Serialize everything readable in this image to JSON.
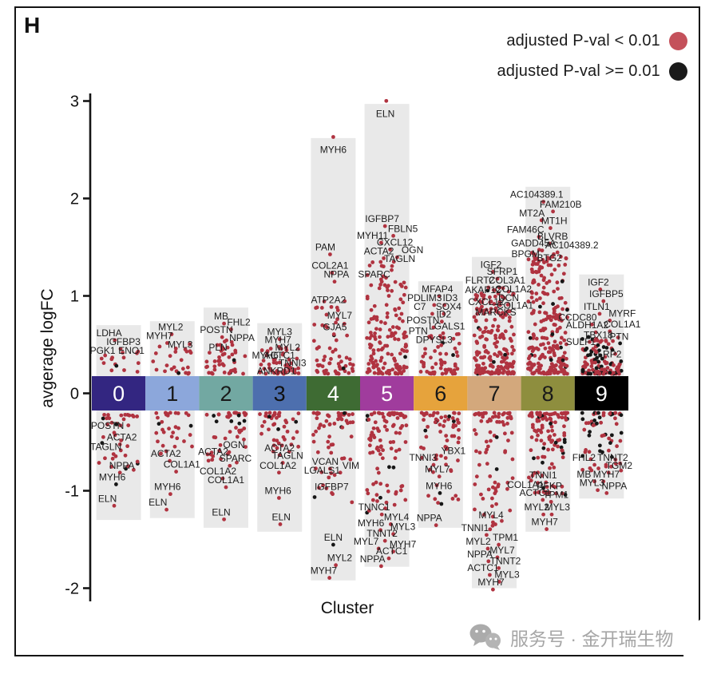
{
  "panel": {
    "label": "H"
  },
  "legend": {
    "items": [
      {
        "label": "adjusted P-val < 0.01",
        "color": "#c4515b"
      },
      {
        "label": "adjusted  P-val >= 0.01",
        "color": "#1a1a1a"
      }
    ]
  },
  "axes": {
    "y_label": "avgerage logFC",
    "x_label": "Cluster",
    "y_ticks": [
      3,
      2,
      1,
      0,
      -1,
      -2
    ]
  },
  "watermark": {
    "icon": "wechat-icon",
    "text": "服务号 · 金开瑞生物"
  },
  "chart_data": {
    "type": "scatter",
    "title": "",
    "xlabel": "Cluster",
    "ylabel": "avgerage logFC",
    "ylim": [
      -2,
      3
    ],
    "grid": false,
    "legend_position": "top-right",
    "dot_colors": {
      "significant": "#b03340",
      "not_significant": "#161616"
    },
    "strip_color": "#e9e9e9",
    "clusters": [
      {
        "id": "0",
        "band_color": "#332681",
        "band_text_color": "#ffffff",
        "upper": {
          "extent": 0.7,
          "dots": {
            "count": 13,
            "min": 0.22,
            "max": 0.46,
            "pow": 1.6,
            "black": 0.06
          },
          "labels": [
            [
              "LDHA",
              -12,
              0.62
            ],
            [
              "IGFBP3",
              6,
              0.53
            ],
            [
              "PGK1",
              -20,
              0.44
            ],
            [
              "ENO1",
              16,
              0.44
            ]
          ]
        },
        "lower": {
          "extent": -1.3,
          "dots": {
            "count": 36,
            "min": 0.22,
            "max": 0.8,
            "pow": 2.2,
            "black": 0.12
          },
          "labels": [
            [
              "POSTN",
              -14,
              -0.33
            ],
            [
              "ACTA2",
              4,
              -0.45
            ],
            [
              "TAGLN",
              -16,
              -0.55
            ],
            [
              "NPPA",
              4,
              -0.74
            ],
            [
              "MYH6",
              -8,
              -0.86,
              1
            ],
            [
              "ELN",
              -14,
              -1.08
            ]
          ]
        }
      },
      {
        "id": "1",
        "band_color": "#8ca7db",
        "band_text_color": "#1a1a1a",
        "upper": {
          "extent": 0.74,
          "dots": {
            "count": 24,
            "min": 0.2,
            "max": 0.52,
            "pow": 1.8,
            "black": 0.05
          },
          "labels": [
            [
              "MYL2",
              -2,
              0.68
            ],
            [
              "MYH7",
              -16,
              0.59
            ],
            [
              "MYL3",
              10,
              0.5
            ]
          ]
        },
        "lower": {
          "extent": -1.28,
          "dots": {
            "count": 32,
            "min": 0.2,
            "max": 0.65,
            "pow": 2.0,
            "black": 0.16
          },
          "labels": [
            [
              "ACTA2",
              -8,
              -0.62
            ],
            [
              "COL1A1",
              12,
              -0.73
            ],
            [
              "MYH6",
              -6,
              -0.96
            ],
            [
              "ELN",
              -18,
              -1.12
            ]
          ]
        }
      },
      {
        "id": "2",
        "band_color": "#72a8a2",
        "band_text_color": "#1a1a1a",
        "upper": {
          "extent": 0.88,
          "dots": {
            "count": 42,
            "min": 0.2,
            "max": 0.55,
            "pow": 2.0,
            "black": 0.04
          },
          "labels": [
            [
              "MB",
              -6,
              0.79
            ],
            [
              "FHL2",
              16,
              0.73
            ],
            [
              "POSTN",
              -12,
              0.65
            ],
            [
              "NPPA",
              20,
              0.57
            ],
            [
              "PLN",
              -10,
              0.47
            ]
          ]
        },
        "lower": {
          "extent": -1.38,
          "dots": {
            "count": 46,
            "min": 0.2,
            "max": 0.72,
            "pow": 2.0,
            "black": 0.08
          },
          "labels": [
            [
              "OGN",
              10,
              -0.53
            ],
            [
              "ACTA2",
              -16,
              -0.6
            ],
            [
              "SPARC",
              12,
              -0.67
            ],
            [
              "COL1A2",
              -10,
              -0.8
            ],
            [
              "COL1A1",
              0,
              -0.89
            ],
            [
              "ELN",
              -6,
              -1.22
            ]
          ]
        }
      },
      {
        "id": "3",
        "band_color": "#4d6fae",
        "band_text_color": "#101010",
        "upper": {
          "extent": 0.72,
          "dots": {
            "count": 46,
            "min": 0.2,
            "max": 0.48,
            "pow": 1.8,
            "black": 0.05
          },
          "labels": [
            [
              "MYL3",
              0,
              0.63
            ],
            [
              "MYH7",
              -2,
              0.55
            ],
            [
              "MYL2",
              10,
              0.47
            ],
            [
              "MYH6",
              -18,
              0.39
            ],
            [
              "ACTC1",
              0,
              0.39
            ],
            [
              "TNNI3",
              16,
              0.31
            ],
            [
              "ANKRD1",
              -4,
              0.23
            ]
          ]
        },
        "lower": {
          "extent": -1.42,
          "dots": {
            "count": 42,
            "min": 0.2,
            "max": 0.62,
            "pow": 2.0,
            "black": 0.1
          },
          "labels": [
            [
              "ACTA2",
              0,
              -0.56
            ],
            [
              "TAGLN",
              10,
              -0.64
            ],
            [
              "COL1A2",
              -2,
              -0.74
            ],
            [
              "MYH6",
              -2,
              -1.0
            ],
            [
              "ELN",
              2,
              -1.27
            ]
          ]
        }
      },
      {
        "id": "4",
        "band_color": "#3e6b33",
        "band_text_color": "#ffffff",
        "upper": {
          "extent": 2.62,
          "dots": {
            "count": 60,
            "min": 0.2,
            "max": 0.95,
            "pow": 2.2,
            "black": 0.02
          },
          "labels": [
            [
              "MYH6",
              0,
              2.5,
              2
            ],
            [
              "PAM",
              -10,
              1.5
            ],
            [
              "COL2A1",
              -4,
              1.31
            ],
            [
              "NPPA",
              4,
              1.22
            ],
            [
              "ATP2A2",
              -6,
              0.96
            ],
            [
              "MYL7",
              8,
              0.8
            ],
            [
              "GJA5",
              2,
              0.68
            ]
          ]
        },
        "lower": {
          "extent": -1.92,
          "dots": {
            "count": 58,
            "min": 0.2,
            "max": 1.15,
            "pow": 2.3,
            "black": 0.05
          },
          "labels": [
            [
              "VCAN",
              -10,
              -0.7
            ],
            [
              "VIM",
              22,
              -0.74
            ],
            [
              "LGALS1",
              -14,
              -0.79
            ],
            [
              "IGFBP7",
              -2,
              -0.96
            ],
            [
              "ELN",
              0,
              -1.48,
              1
            ],
            [
              "MYL2",
              8,
              -1.69
            ],
            [
              "MYH7",
              -12,
              -1.82
            ]
          ]
        }
      },
      {
        "id": "5",
        "band_color": "#a03c9d",
        "band_text_color": "#ffffff",
        "upper": {
          "extent": 2.97,
          "dots": {
            "count": 155,
            "min": 0.2,
            "max": 1.35,
            "pow": 2.0,
            "black": 0.02
          },
          "labels": [
            [
              "ELN",
              -2,
              2.87,
              2
            ],
            [
              "IGFBP7",
              -6,
              1.79
            ],
            [
              "FBLN5",
              20,
              1.69
            ],
            [
              "MYH11",
              -18,
              1.62
            ],
            [
              "CXCL12",
              10,
              1.55
            ],
            [
              "ACTA2",
              -10,
              1.46
            ],
            [
              "OGN",
              32,
              1.47
            ],
            [
              "TAGLN",
              16,
              1.38
            ],
            [
              "SPARC",
              -16,
              1.22
            ]
          ]
        },
        "lower": {
          "extent": -1.78,
          "dots": {
            "count": 95,
            "min": 0.2,
            "max": 1.25,
            "pow": 2.2,
            "black": 0.05
          },
          "labels": [
            [
              "TNNC1",
              -16,
              -1.17
            ],
            [
              "MYL4",
              12,
              -1.27
            ],
            [
              "MYH6",
              -20,
              -1.33
            ],
            [
              "MYL3",
              20,
              -1.37
            ],
            [
              "TNNT2",
              -6,
              -1.44
            ],
            [
              "MYL7",
              -26,
              -1.52
            ],
            [
              "MYH7",
              20,
              -1.55
            ],
            [
              "ACTC1",
              6,
              -1.62
            ],
            [
              "NPPA",
              -18,
              -1.7
            ]
          ]
        }
      },
      {
        "id": "6",
        "band_color": "#e6a33c",
        "band_text_color": "#1a1a1a",
        "upper": {
          "extent": 1.15,
          "dots": {
            "count": 58,
            "min": 0.2,
            "max": 0.62,
            "pow": 2.0,
            "black": 0.04
          },
          "labels": [
            [
              "MFAP4",
              -4,
              1.07
            ],
            [
              "PDLIM3",
              -20,
              0.98
            ],
            [
              "ID3",
              12,
              0.98
            ],
            [
              "C7",
              -26,
              0.89
            ],
            [
              "SOX4",
              10,
              0.89
            ],
            [
              "ID2",
              4,
              0.81
            ],
            [
              "POSTN",
              -22,
              0.75
            ],
            [
              "LGALS1",
              8,
              0.69
            ],
            [
              "PTN",
              -28,
              0.64
            ],
            [
              "DPYSL3",
              -8,
              0.55
            ]
          ]
        },
        "lower": {
          "extent": -1.38,
          "dots": {
            "count": 68,
            "min": 0.2,
            "max": 1.15,
            "pow": 2.2,
            "black": 0.07
          },
          "labels": [
            [
              "YBX1",
              16,
              -0.59
            ],
            [
              "TNNI3",
              -22,
              -0.66
            ],
            [
              "MYL7",
              -4,
              -0.78
            ],
            [
              "MYH6",
              -2,
              -0.95,
              1
            ],
            [
              "NPPA",
              -14,
              -1.28
            ]
          ]
        }
      },
      {
        "id": "7",
        "band_color": "#d3a87c",
        "band_text_color": "#1a1a1a",
        "upper": {
          "extent": 1.4,
          "dots": {
            "count": 190,
            "min": 0.2,
            "max": 1.08,
            "pow": 1.9,
            "black": 0.03
          },
          "labels": [
            [
              "IGF2",
              -4,
              1.32
            ],
            [
              "SFRP1",
              10,
              1.25
            ],
            [
              "FLRT2",
              -18,
              1.16
            ],
            [
              "COL3A1",
              16,
              1.16
            ],
            [
              "AKAP12",
              -14,
              1.06
            ],
            [
              "COL1A2",
              24,
              1.07
            ],
            [
              "DCN",
              18,
              0.98
            ],
            [
              "CXCL12",
              -10,
              0.94
            ],
            [
              "COL1A1",
              26,
              0.9
            ],
            [
              "MARCKS",
              2,
              0.83
            ]
          ]
        },
        "lower": {
          "extent": -2.0,
          "dots": {
            "count": 80,
            "min": 0.2,
            "max": 1.4,
            "pow": 2.1,
            "black": 0.05
          },
          "labels": [
            [
              "MYL4",
              -4,
              -1.25
            ],
            [
              "TNNI1",
              -24,
              -1.38
            ],
            [
              "TPM1",
              14,
              -1.48
            ],
            [
              "MYL2",
              -20,
              -1.52
            ],
            [
              "MYL7",
              10,
              -1.61
            ],
            [
              "NPPA",
              -18,
              -1.65
            ],
            [
              "TNNT2",
              14,
              -1.72
            ],
            [
              "ACTC1",
              -14,
              -1.79
            ],
            [
              "MYL3",
              16,
              -1.86
            ],
            [
              "MYH7",
              -4,
              -1.94
            ]
          ]
        }
      },
      {
        "id": "8",
        "band_color": "#8e8e3e",
        "band_text_color": "#1a1a1a",
        "upper": {
          "extent": 2.12,
          "dots": {
            "count": 240,
            "min": 0.2,
            "max": 1.48,
            "pow": 1.9,
            "black": 0.05
          },
          "labels": [
            [
              "AC104389.1",
              -14,
              2.04
            ],
            [
              "FAM210B",
              16,
              1.94
            ],
            [
              "MT2A",
              -20,
              1.85
            ],
            [
              "MT1H",
              8,
              1.77
            ],
            [
              "FAM46C",
              -28,
              1.68
            ],
            [
              "BLVRB",
              6,
              1.61
            ],
            [
              "GADD45A",
              -18,
              1.54
            ],
            [
              "AC104389.2",
              30,
              1.52
            ],
            [
              "BPGM",
              -28,
              1.43
            ],
            [
              "BTG2",
              2,
              1.39
            ]
          ]
        },
        "lower": {
          "extent": -1.42,
          "dots": {
            "count": 115,
            "min": 0.2,
            "max": 1.05,
            "pow": 2.0,
            "black": 0.1
          },
          "labels": [
            [
              "TNNI1",
              -6,
              -0.84
            ],
            [
              "COL1A1",
              -28,
              -0.94
            ],
            [
              "PFKP",
              2,
              -0.95
            ],
            [
              "ACTC1",
              -16,
              -1.02
            ],
            [
              "TPM1",
              10,
              -1.04
            ],
            [
              "MYL2",
              -14,
              -1.17
            ],
            [
              "MYL3",
              12,
              -1.17
            ],
            [
              "MYH7",
              -4,
              -1.32
            ]
          ]
        }
      },
      {
        "id": "9",
        "band_color": "#000000",
        "band_text_color": "#ffffff",
        "upper": {
          "extent": 1.22,
          "dots": {
            "count": 125,
            "min": 0.2,
            "max": 0.58,
            "pow": 2.0,
            "black": 0.42
          },
          "labels": [
            [
              "IGF2",
              -4,
              1.14
            ],
            [
              "IGFBP5",
              6,
              1.02
            ],
            [
              "ITLN1",
              -6,
              0.89
            ],
            [
              "MYRF",
              26,
              0.82
            ],
            [
              "CCDC80",
              -30,
              0.78
            ],
            [
              "COL1A1",
              26,
              0.71
            ],
            [
              "ALDH1A2",
              -18,
              0.7
            ],
            [
              "TBX18",
              -4,
              0.6
            ],
            [
              "PTN",
              22,
              0.58
            ],
            [
              "SULF1",
              -26,
              0.53
            ],
            [
              "LRP2",
              10,
              0.4
            ]
          ]
        },
        "lower": {
          "extent": -1.08,
          "dots": {
            "count": 62,
            "min": 0.2,
            "max": 0.8,
            "pow": 2.1,
            "black": 0.35
          },
          "labels": [
            [
              "FHL2",
              -22,
              -0.66
            ],
            [
              "TNNT2",
              14,
              -0.66
            ],
            [
              "TGM2",
              22,
              -0.74
            ],
            [
              "MB",
              -22,
              -0.83
            ],
            [
              "MYH7",
              6,
              -0.83
            ],
            [
              "MYL3",
              -12,
              -0.92
            ],
            [
              "NPPA",
              16,
              -0.95
            ]
          ]
        }
      }
    ]
  }
}
